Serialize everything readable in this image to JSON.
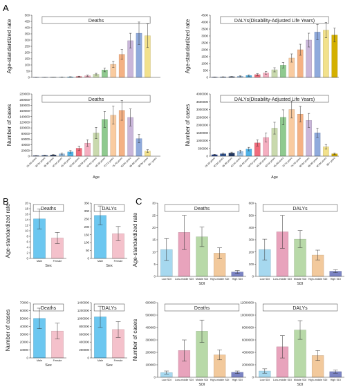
{
  "panels": [
    {
      "label": "A"
    },
    {
      "label": "B"
    },
    {
      "label": "C"
    }
  ],
  "colors": {
    "age": [
      "#1e3a8a",
      "#2f5597",
      "#203864",
      "#9dc3e6",
      "#4fb3e8",
      "#ef6c7c",
      "#f4aec0",
      "#c9d9ad",
      "#8fca8f",
      "#f9cba0",
      "#f4b183",
      "#c9b6d9",
      "#8faadc",
      "#f2e18c",
      "#d4b000"
    ],
    "sex": [
      "#6cc7f0",
      "#f4c1cb"
    ],
    "sdi": [
      "#a6d8ef",
      "#e8a3bc",
      "#b8d9a8",
      "#f2c99c",
      "#7b84c4"
    ]
  },
  "chart_data": [
    {
      "id": "a-deaths-rate",
      "type": "bar",
      "title": "Deaths",
      "xlabel": "",
      "ylabel": "Age-standardized rate",
      "ylim": [
        0,
        500
      ],
      "yticks": [
        "0",
        "50",
        "100",
        "150",
        "200",
        "250",
        "300",
        "350",
        "400",
        "450",
        "500"
      ],
      "categories": [
        "25-29 years",
        "30-34 years",
        "35-39 years",
        "40-44 years",
        "45-49 years",
        "50-54 years",
        "55-59 years",
        "60-64 years",
        "65-69 years",
        "70-74 years",
        "75-79 years",
        "80-84 years",
        "85-89 years",
        "90-94 years",
        "95+ years"
      ],
      "values": [
        0.4,
        0.7,
        1.2,
        2,
        4,
        7,
        13,
        25,
        60,
        105,
        185,
        295,
        355,
        335,
        0
      ],
      "errors": [
        0.2,
        0.3,
        0.5,
        0.8,
        1.5,
        3,
        5,
        8,
        15,
        25,
        40,
        60,
        90,
        95,
        0
      ],
      "palette": "age",
      "show_xticks": false
    },
    {
      "id": "a-dalys-rate",
      "type": "bar",
      "title": "DALYs(Disability-Adjusted Life Years)",
      "xlabel": "",
      "ylabel": "Age-standardized rate",
      "ylim": [
        0,
        4500
      ],
      "yticks": [
        "0",
        "500",
        "1000",
        "1500",
        "2000",
        "2500",
        "3000",
        "3500",
        "4000",
        "4500"
      ],
      "categories": [
        "25-29 years",
        "30-34 years",
        "35-39 years",
        "40-44 years",
        "45-49 years",
        "50-54 years",
        "55-59 years",
        "60-64 years",
        "65-69 years",
        "70-74 years",
        "75-79 years",
        "80-84 years",
        "85-89 years",
        "90-94 years",
        "95+ years"
      ],
      "values": [
        20,
        30,
        50,
        80,
        130,
        200,
        320,
        550,
        880,
        1400,
        2000,
        2700,
        3280,
        3420,
        3060
      ],
      "errors": [
        10,
        15,
        20,
        30,
        50,
        70,
        100,
        150,
        200,
        300,
        400,
        500,
        550,
        550,
        500
      ],
      "palette": "age",
      "show_xticks": false
    },
    {
      "id": "a-deaths-cases",
      "type": "bar",
      "title": "Deaths",
      "xlabel": "Age",
      "ylabel": "Number of cases",
      "ylim": [
        0,
        220000
      ],
      "yticks": [
        "0",
        "20000",
        "40000",
        "60000",
        "80000",
        "100000",
        "120000",
        "140000",
        "160000",
        "180000",
        "200000",
        "220000"
      ],
      "categories": [
        "25-29 years",
        "30-34 years",
        "35-39 years",
        "40-44 years",
        "45-49 years",
        "50-54 years",
        "55-59 years",
        "60-64 years",
        "65-69 years",
        "70-74 years",
        "75-79 years",
        "80-84 years",
        "85-89 years",
        "90-94 years",
        "95+ years"
      ],
      "values": [
        1500,
        2500,
        4000,
        8000,
        15000,
        28000,
        46000,
        82000,
        130000,
        145000,
        162000,
        137000,
        62000,
        18000,
        0
      ],
      "errors": [
        600,
        1000,
        1500,
        3000,
        5000,
        8000,
        12000,
        20000,
        28000,
        32000,
        35000,
        30000,
        15000,
        5000,
        0
      ],
      "palette": "age",
      "show_xticks": true
    },
    {
      "id": "a-dalys-cases",
      "type": "bar",
      "title": "DALYs(Disability-Adjusted Life Years)",
      "xlabel": "Age",
      "ylabel": "Number of cases",
      "ylim": [
        0,
        4000000
      ],
      "yticks": [
        "0",
        "500000",
        "1000000",
        "1500000",
        "2000000",
        "2500000",
        "3000000",
        "3500000",
        "4000000"
      ],
      "categories": [
        "25-29 years",
        "30-34 years",
        "35-39 years",
        "40-44 years",
        "45-49 years",
        "50-54 years",
        "55-59 years",
        "60-64 years",
        "65-69 years",
        "70-74 years",
        "75-79 years",
        "80-84 years",
        "85-89 years",
        "90-94 years",
        "95+ years"
      ],
      "values": [
        90000,
        150000,
        200000,
        300000,
        450000,
        850000,
        1200000,
        1800000,
        2500000,
        3000000,
        2700000,
        2300000,
        1500000,
        600000,
        150000
      ],
      "errors": [
        30000,
        50000,
        60000,
        90000,
        120000,
        200000,
        280000,
        380000,
        480000,
        550000,
        500000,
        450000,
        300000,
        150000,
        50000
      ],
      "palette": "age",
      "show_xticks": true
    },
    {
      "id": "b-deaths-rate",
      "type": "bar",
      "title": "Deaths",
      "xlabel": "Sex",
      "ylabel": "Age-standardized rate",
      "ylim": [
        0,
        20
      ],
      "yticks": [
        "0",
        "2",
        "4",
        "6",
        "8",
        "10",
        "12",
        "14",
        "16",
        "18",
        "20"
      ],
      "categories": [
        "Male",
        "Female"
      ],
      "values": [
        14.3,
        7.4
      ],
      "errors": [
        3.6,
        2.0
      ],
      "palette": "sex",
      "show_xticks": true
    },
    {
      "id": "b-dalys-rate",
      "type": "bar",
      "title": "DALYs",
      "xlabel": "Sex",
      "ylabel": "",
      "ylim": [
        0,
        350
      ],
      "yticks": [
        "0",
        "50",
        "100",
        "150",
        "200",
        "250",
        "300",
        "350"
      ],
      "categories": [
        "Male",
        "Female"
      ],
      "values": [
        272,
        157
      ],
      "errors": [
        60,
        45
      ],
      "palette": "sex",
      "show_xticks": true
    },
    {
      "id": "b-deaths-cases",
      "type": "bar",
      "title": "Deaths",
      "xlabel": "Sex",
      "ylabel": "Number of cases",
      "ylim": [
        0,
        70000
      ],
      "yticks": [
        "0",
        "10000",
        "20000",
        "30000",
        "40000",
        "50000",
        "60000",
        "70000"
      ],
      "categories": [
        "Male",
        "Female"
      ],
      "values": [
        50000,
        34000
      ],
      "errors": [
        13000,
        10000
      ],
      "palette": "sex",
      "show_xticks": true
    },
    {
      "id": "b-dalys-cases",
      "type": "bar",
      "title": "DALYs",
      "xlabel": "Sex",
      "ylabel": "",
      "ylim": [
        0,
        1400000
      ],
      "yticks": [
        "0",
        "200000",
        "400000",
        "600000",
        "800000",
        "1000000",
        "1200000",
        "1400000"
      ],
      "categories": [
        "Male",
        "Female"
      ],
      "values": [
        1040000,
        720000
      ],
      "errors": [
        270000,
        200000
      ],
      "palette": "sex",
      "show_xticks": true
    },
    {
      "id": "c-deaths-rate",
      "type": "bar",
      "title": "Deaths",
      "xlabel": "SDI",
      "ylabel": "Age-standardized rate",
      "ylim": [
        0,
        30
      ],
      "yticks": [
        "0",
        "5",
        "10",
        "15",
        "20",
        "25",
        "30"
      ],
      "categories": [
        "Low SDI",
        "Low-middle SDI",
        "Middle SDI",
        "High-middle SDI",
        "High SDI"
      ],
      "values": [
        11,
        18,
        16.2,
        9.5,
        1.8
      ],
      "errors": [
        4.5,
        7,
        4,
        2.2,
        0.6
      ],
      "palette": "sdi",
      "show_xticks": true
    },
    {
      "id": "c-dalys-rate",
      "type": "bar",
      "title": "DALYs",
      "xlabel": "SDI",
      "ylabel": "",
      "ylim": [
        0,
        600
      ],
      "yticks": [
        "0",
        "100",
        "200",
        "300",
        "400",
        "500",
        "600"
      ],
      "categories": [
        "Low SDI",
        "Low-middle SDI",
        "Middle SDI",
        "High-middle SDI",
        "High SDI"
      ],
      "values": [
        220,
        365,
        305,
        175,
        42
      ],
      "errors": [
        85,
        135,
        70,
        40,
        12
      ],
      "palette": "sdi",
      "show_xticks": true
    },
    {
      "id": "c-deaths-cases",
      "type": "bar",
      "title": "Deaths",
      "xlabel": "SDI",
      "ylabel": "Number of cases",
      "ylim": [
        0,
        600000
      ],
      "yticks": [
        "0",
        "100000",
        "200000",
        "300000",
        "400000",
        "500000",
        "600000"
      ],
      "categories": [
        "Low SDI",
        "Low-middle SDI",
        "Middle SDI",
        "High-middle SDI",
        "High SDI"
      ],
      "values": [
        38000,
        215000,
        370000,
        180000,
        40000
      ],
      "errors": [
        12000,
        85000,
        90000,
        40000,
        10000
      ],
      "palette": "sdi",
      "show_xticks": true
    },
    {
      "id": "c-dalys-cases",
      "type": "bar",
      "title": "DALYs",
      "xlabel": "SDI",
      "ylabel": "",
      "ylim": [
        0,
        12000000
      ],
      "yticks": [
        "0",
        "2000000",
        "4000000",
        "6000000",
        "8000000",
        "10000000",
        "12000000"
      ],
      "categories": [
        "Low SDI",
        "Low-middle SDI",
        "Middle SDI",
        "High-middle SDI",
        "High SDI"
      ],
      "values": [
        1000000,
        4900000,
        7600000,
        3500000,
        900000
      ],
      "errors": [
        350000,
        1800000,
        1500000,
        800000,
        250000
      ],
      "palette": "sdi",
      "show_xticks": true
    }
  ]
}
